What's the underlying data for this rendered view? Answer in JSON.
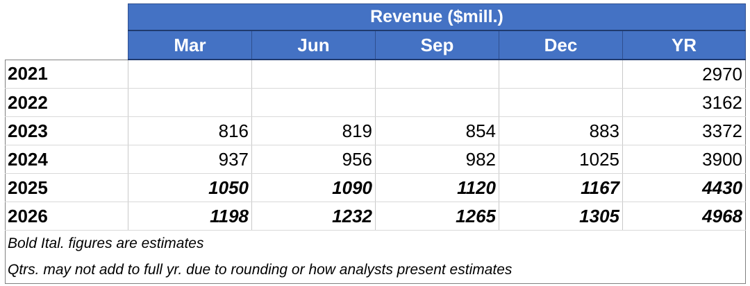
{
  "chart_data": {
    "type": "table",
    "title": "Revenue ($mill.)",
    "columns": [
      "Mar",
      "Jun",
      "Sep",
      "Dec",
      "YR"
    ],
    "rows": [
      {
        "year": "2021",
        "values": [
          "",
          "",
          "",
          "",
          "2970"
        ],
        "estimate": false
      },
      {
        "year": "2022",
        "values": [
          "",
          "",
          "",
          "",
          "3162"
        ],
        "estimate": false
      },
      {
        "year": "2023",
        "values": [
          "816",
          "819",
          "854",
          "883",
          "3372"
        ],
        "estimate": false
      },
      {
        "year": "2024",
        "values": [
          "937",
          "956",
          "982",
          "1025",
          "3900"
        ],
        "estimate": false
      },
      {
        "year": "2025",
        "values": [
          "1050",
          "1090",
          "1120",
          "1167",
          "4430"
        ],
        "estimate": true
      },
      {
        "year": "2026",
        "values": [
          "1198",
          "1232",
          "1265",
          "1305",
          "4968"
        ],
        "estimate": true
      }
    ],
    "notes": [
      "Bold Ital. figures are estimates",
      "Qtrs. may not add to full yr. due to rounding or how analysts present estimates"
    ],
    "header_color": "#4472c4",
    "header_text_color": "#ffffff"
  }
}
